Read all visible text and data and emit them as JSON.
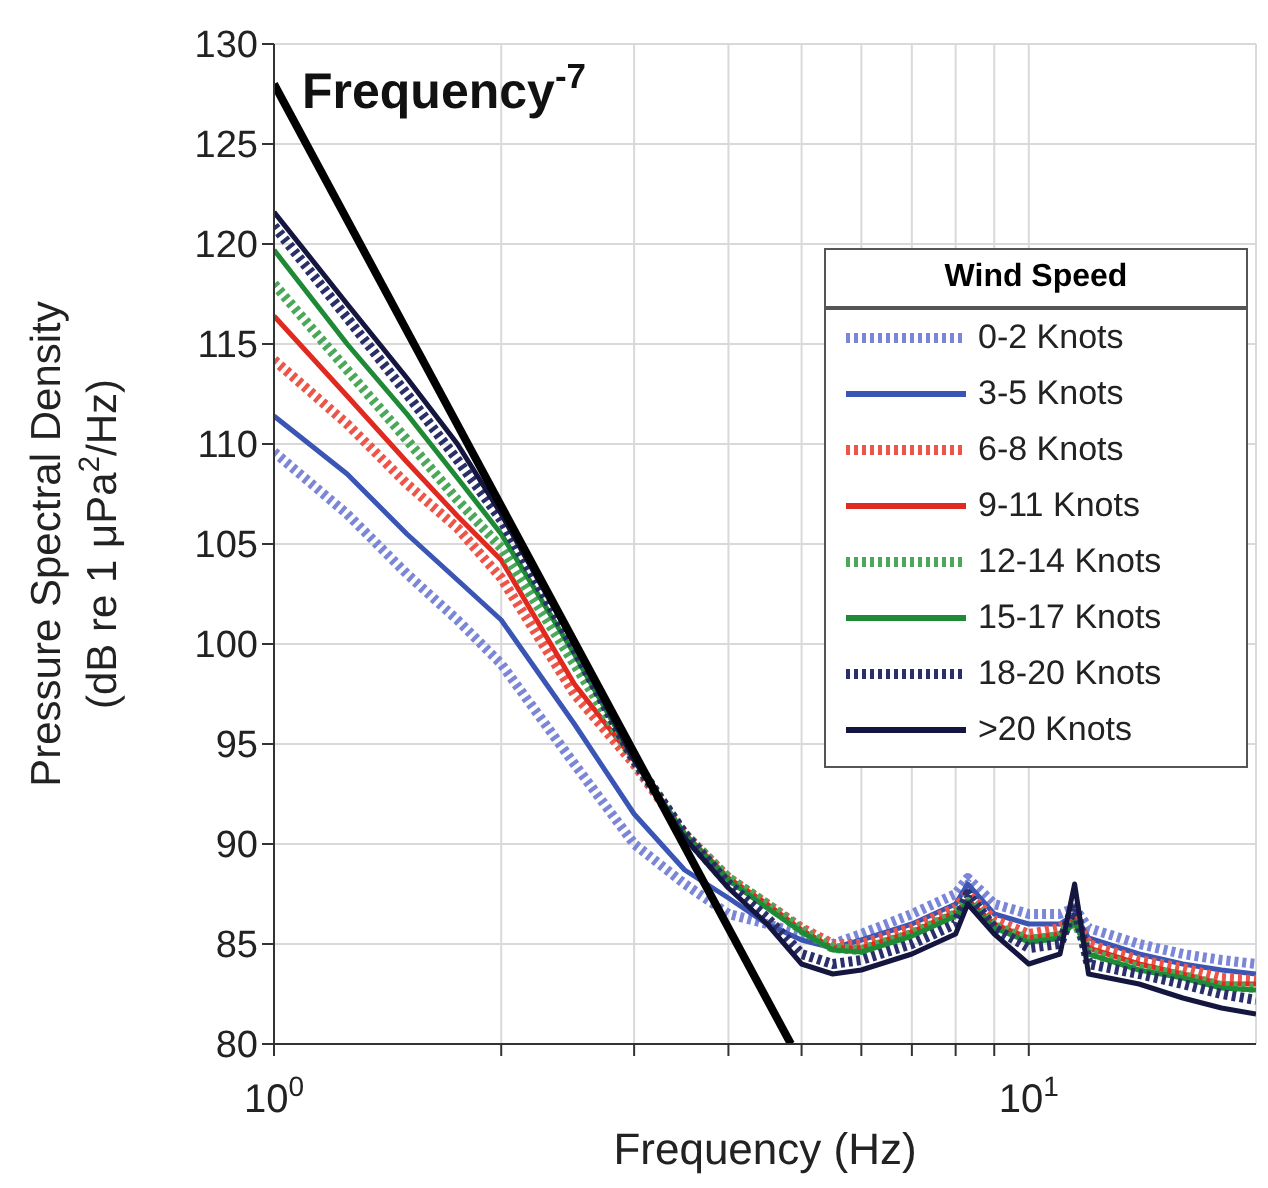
{
  "chart_data": {
    "type": "line",
    "xlabel": "Frequency (Hz)",
    "ylabel": "Pressure Spectral Density\n(dB re 1 μPa$^{2}$/Hz)",
    "legend_title": "Wind Speed",
    "log": "x",
    "grid": true,
    "legend": "top right",
    "marker": "none",
    "xlim": [
      1,
      20
    ],
    "xticks": [
      {
        "value": 1,
        "label": "10$^{0}$"
      },
      {
        "value": 2,
        "label": null
      },
      {
        "value": 3,
        "label": null
      },
      {
        "value": 4,
        "label": null
      },
      {
        "value": 5,
        "label": null
      },
      {
        "value": 6,
        "label": null
      },
      {
        "value": 7,
        "label": null
      },
      {
        "value": 8,
        "label": null
      },
      {
        "value": 9,
        "label": null
      },
      {
        "value": 10,
        "label": "10$^{1}$"
      }
    ],
    "ylim": [
      80,
      130
    ],
    "yticks": [
      80,
      85,
      90,
      95,
      100,
      105,
      110,
      115,
      120,
      125,
      130
    ],
    "annotations": [
      {
        "text": "Frequency$^{-7}$",
        "x": 1,
        "y": 128
      }
    ],
    "x": [
      1,
      1.25,
      1.5,
      1.75,
      2,
      2.5,
      3,
      3.5,
      4,
      4.5,
      5,
      5.5,
      6,
      7,
      8,
      8.3,
      9,
      10,
      11,
      11.5,
      12,
      14,
      16,
      18,
      20
    ],
    "series": [
      {
        "name": "0-2 Knots",
        "color": "#7b86d6",
        "line_style": "dotted",
        "values": [
          109.6,
          106.5,
          103.5,
          101.2,
          99,
          94,
          90,
          88,
          86.5,
          86,
          85.5,
          85,
          85.5,
          86.5,
          87.5,
          88.3,
          87,
          86.5,
          86.5,
          86.8,
          85.8,
          85,
          84.5,
          84.2,
          84
        ]
      },
      {
        "name": "3-5 Knots",
        "color": "#3b55b5",
        "line_style": "solid",
        "values": [
          111.4,
          108.5,
          105.5,
          103.2,
          101.2,
          96,
          91.5,
          88.7,
          87.3,
          86,
          85.2,
          84.8,
          85.2,
          86,
          87,
          88,
          86.5,
          86,
          86,
          86.5,
          85.3,
          84.5,
          84,
          83.7,
          83.5
        ]
      },
      {
        "name": "6-8 Knots",
        "color": "#ec5548",
        "line_style": "dotted",
        "values": [
          114.2,
          111,
          108,
          105.8,
          103.3,
          97.5,
          94,
          90.5,
          88.3,
          87,
          85.8,
          85,
          85,
          85.8,
          86.8,
          87.5,
          86.2,
          85.5,
          85.8,
          86.3,
          85,
          84.2,
          83.8,
          83.3,
          83.2
        ]
      },
      {
        "name": "9-11 Knots",
        "color": "#e02a20",
        "line_style": "solid",
        "values": [
          116.4,
          112.4,
          109.1,
          106.4,
          104.2,
          98,
          94.2,
          90.5,
          88.3,
          87,
          85.7,
          84.8,
          84.8,
          85.6,
          86.6,
          87.2,
          86,
          85.3,
          85.5,
          86.2,
          84.8,
          84,
          83.5,
          83,
          83
        ]
      },
      {
        "name": "12-14 Knots",
        "color": "#4aa858",
        "line_style": "dotted",
        "values": [
          118,
          113.7,
          110.2,
          107.2,
          104.8,
          99,
          94.2,
          90.5,
          88.3,
          87,
          85.7,
          84.8,
          84.7,
          85.5,
          86.5,
          87.2,
          85.9,
          85.2,
          85.4,
          86.2,
          84.6,
          83.8,
          83.4,
          82.9,
          82.8
        ]
      },
      {
        "name": "15-17 Knots",
        "color": "#1f8a36",
        "line_style": "solid",
        "values": [
          119.7,
          115,
          111.5,
          108.3,
          105.5,
          99.5,
          94.2,
          90.5,
          88.2,
          86.8,
          85.6,
          84.7,
          84.6,
          85.4,
          86.4,
          87.1,
          85.8,
          85.1,
          85.3,
          86.1,
          84.5,
          83.7,
          83.3,
          82.8,
          82.7
        ]
      },
      {
        "name": "18-20 Knots",
        "color": "#2a2f6a",
        "line_style": "dotted",
        "values": [
          120.9,
          116.3,
          112.5,
          109.2,
          106.2,
          99.8,
          94.2,
          90.5,
          88,
          86.3,
          84.5,
          84,
          84.2,
          85,
          86,
          87.5,
          85.8,
          84.8,
          85,
          87,
          84,
          83.5,
          83,
          82.5,
          82.2
        ]
      },
      {
        "name": ">20 Knots",
        "color": "#14163f",
        "line_style": "solid",
        "values": [
          121.6,
          117,
          113.3,
          110,
          106.5,
          100,
          94.2,
          90.3,
          87.8,
          86,
          84,
          83.5,
          83.7,
          84.5,
          85.5,
          87,
          85.5,
          84,
          84.5,
          88,
          83.5,
          83,
          82.3,
          81.8,
          81.5
        ]
      },
      {
        "color": "#000000",
        "line_style": "solid",
        "x": [
          1,
          4.84
        ],
        "values": [
          128,
          80
        ]
      }
    ]
  }
}
